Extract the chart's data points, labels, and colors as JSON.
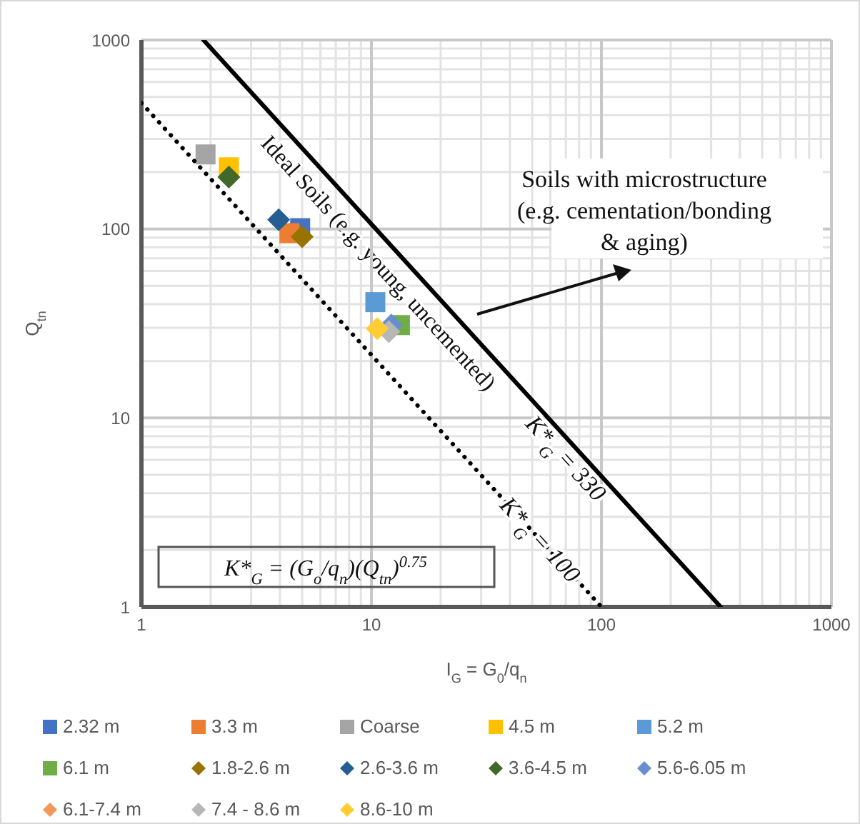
{
  "chart_data": {
    "type": "scatter",
    "xlabel": "I$_{G}$ = G$_{0}$/q$_{n}$",
    "ylabel": "Q$_{tn}$",
    "log": "xy",
    "grid": true,
    "legend": "bottom",
    "xlim": [
      1,
      1000
    ],
    "ylim": [
      1,
      1000
    ],
    "xticks": [
      1,
      10,
      100,
      1000
    ],
    "yticks": [
      1,
      10,
      100,
      1000
    ],
    "series": [
      {
        "name": "2.32 m",
        "color": "#4472c4",
        "marker": "square",
        "x": [
          4.9
        ],
        "values": [
          101
        ]
      },
      {
        "name": "3.3 m",
        "color": "#ed7d31",
        "marker": "square",
        "x": [
          4.4
        ],
        "values": [
          95
        ]
      },
      {
        "name": "Coarse",
        "color": "#a5a5a5",
        "marker": "square",
        "x": [
          1.9
        ],
        "values": [
          248
        ]
      },
      {
        "name": "4.5 m",
        "color": "#ffc000",
        "marker": "square",
        "x": [
          2.4
        ],
        "values": [
          212
        ]
      },
      {
        "name": "5.2 m",
        "color": "#5b9bd5",
        "marker": "square",
        "x": [
          10.4
        ],
        "values": [
          41
        ]
      },
      {
        "name": "6.1 m",
        "color": "#70ad47",
        "marker": "square",
        "x": [
          13.3
        ],
        "values": [
          31
        ]
      },
      {
        "name": "1.8-2.6 m",
        "color": "#997300",
        "marker": "diamond",
        "x": [
          5.0
        ],
        "values": [
          91
        ]
      },
      {
        "name": "2.6-3.6 m",
        "color": "#255e91",
        "marker": "diamond",
        "x": [
          3.95
        ],
        "values": [
          112
        ]
      },
      {
        "name": "3.6-4.5 m",
        "color": "#43682b",
        "marker": "diamond",
        "x": [
          2.4
        ],
        "values": [
          188
        ]
      },
      {
        "name": "5.6-6.05 m",
        "color": "#698ed0",
        "marker": "diamond",
        "x": [
          12.2
        ],
        "values": [
          31
        ]
      },
      {
        "name": "6.1-7.4 m",
        "color": "#f1975a",
        "marker": "diamond",
        "x": [
          null
        ],
        "values": [
          null
        ]
      },
      {
        "name": "7.4 - 8.6 m",
        "color": "#b7b7b7",
        "marker": "diamond",
        "x": [
          11.9
        ],
        "values": [
          28.6
        ]
      },
      {
        "name": "8.6-10 m",
        "color": "#ffcd33",
        "marker": "diamond",
        "x": [
          10.6
        ],
        "values": [
          29.7
        ]
      },
      {
        "type": "line",
        "color": "#000000",
        "line_style": "solid",
        "marker": "none",
        "x": [
          1.86,
          330
        ],
        "values": [
          1000,
          1
        ]
      },
      {
        "type": "line",
        "color": "#000000",
        "line_style": "dotted",
        "marker": "none",
        "x": [
          1,
          100
        ],
        "values": [
          464,
          1
        ]
      }
    ],
    "annotations": [
      "Ideal Soils (e.g. young, uncemented)",
      "K*$_{G}$ = 330",
      "K*$_{G}$ = 100",
      "Soils with microstructure (e.g. cementation/bonding & aging)",
      "K*$_{G}$ = (G$_{o}$/q$_{n}$)(Q$_{tn}$)$^{0.75}$"
    ]
  }
}
